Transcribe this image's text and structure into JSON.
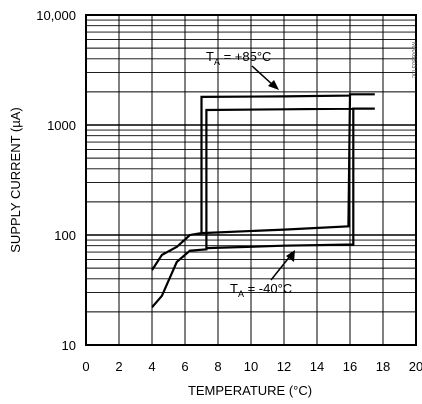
{
  "chart_data": {
    "type": "line",
    "title": "",
    "xlabel": "TEMPERATURE (°C)",
    "ylabel": "SUPPLY CURRENT (µA)",
    "xlim": [
      0,
      20
    ],
    "ylim": [
      10,
      10000
    ],
    "yscale": "log",
    "grid": true,
    "x_tick_labels": [
      "0",
      "2",
      "4",
      "6",
      "8",
      "10",
      "12",
      "14",
      "16",
      "18",
      "20"
    ],
    "y_tick_labels": [
      "10",
      "100",
      "1000",
      "10,000"
    ],
    "side_id": "MAX6503 toc",
    "series": [
      {
        "name": "TA = +85°C",
        "label_main": "T",
        "label_sub": "A",
        "label_rest": " = +85°C",
        "points": [
          [
            4.0,
            48
          ],
          [
            4.6,
            66
          ],
          [
            5.5,
            78
          ],
          [
            6.3,
            100
          ],
          [
            7.0,
            104
          ],
          [
            7.0,
            1800
          ],
          [
            12.0,
            1820
          ],
          [
            16.0,
            1850
          ],
          [
            16.0,
            1900
          ],
          [
            17.5,
            1900
          ],
          [
            16.0,
            1900
          ],
          [
            15.9,
            120
          ],
          [
            15.9,
            120
          ],
          [
            12.0,
            112
          ],
          [
            7.0,
            104
          ]
        ]
      },
      {
        "name": "TA = -40°C",
        "label_main": "T",
        "label_sub": "A",
        "label_rest": " = -40°C",
        "points": [
          [
            4.0,
            22
          ],
          [
            4.6,
            28
          ],
          [
            5.5,
            57
          ],
          [
            6.3,
            72
          ],
          [
            7.3,
            74
          ],
          [
            7.3,
            1370
          ],
          [
            12.0,
            1390
          ],
          [
            16.2,
            1410
          ],
          [
            17.5,
            1410
          ],
          [
            16.2,
            1410
          ],
          [
            16.2,
            82
          ],
          [
            12.0,
            80
          ],
          [
            7.3,
            76
          ]
        ]
      }
    ]
  }
}
